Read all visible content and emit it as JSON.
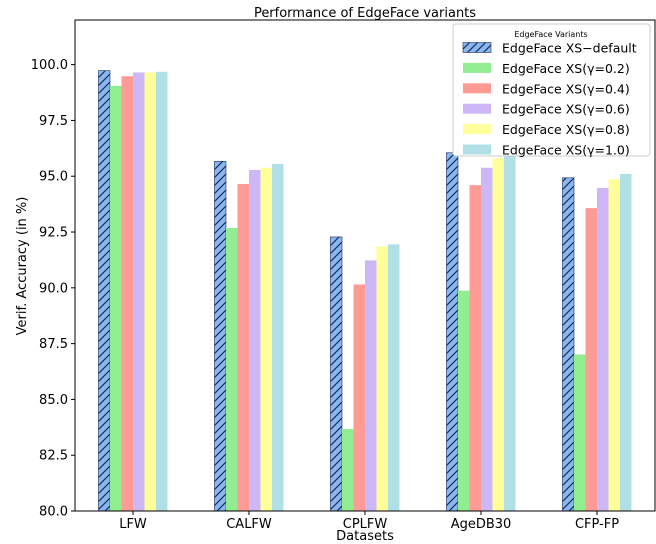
{
  "chart_data": {
    "type": "bar",
    "title": "Performance of EdgeFace variants",
    "xlabel": "Datasets",
    "ylabel": "Verif. Accuracy (in %)",
    "ylim": [
      80,
      102
    ],
    "yticks": [
      "80.0",
      "82.5",
      "85.0",
      "87.5",
      "90.0",
      "92.5",
      "95.0",
      "97.5",
      "100.0"
    ],
    "categories": [
      "LFW",
      "CALFW",
      "CPLFW",
      "AgeDB30",
      "CFP-FP"
    ],
    "legend": {
      "title": "EdgeFace Variants",
      "position": "top-right"
    },
    "series": [
      {
        "name": "EdgeFace XS−default",
        "color": "#89b8f0",
        "hatch": true,
        "values": [
          99.73,
          95.67,
          92.28,
          96.05,
          94.93
        ]
      },
      {
        "name": "EdgeFace XS(γ=0.2)",
        "color": "#90ee90",
        "hatch": false,
        "values": [
          99.05,
          92.68,
          83.67,
          89.87,
          87.01
        ]
      },
      {
        "name": "EdgeFace XS(γ=0.4)",
        "color": "#ff9b95",
        "hatch": false,
        "values": [
          99.48,
          94.65,
          90.15,
          94.6,
          93.57
        ]
      },
      {
        "name": "EdgeFace XS(γ=0.6)",
        "color": "#cdb7f6",
        "hatch": false,
        "values": [
          99.65,
          95.28,
          91.23,
          95.38,
          94.48
        ]
      },
      {
        "name": "EdgeFace XS(γ=0.8)",
        "color": "#ffff99",
        "hatch": false,
        "values": [
          99.65,
          95.38,
          91.85,
          95.8,
          94.87
        ]
      },
      {
        "name": "EdgeFace XS(γ=1.0)",
        "color": "#b0e0e6",
        "hatch": false,
        "values": [
          99.68,
          95.55,
          91.95,
          96.12,
          95.1
        ]
      }
    ]
  }
}
